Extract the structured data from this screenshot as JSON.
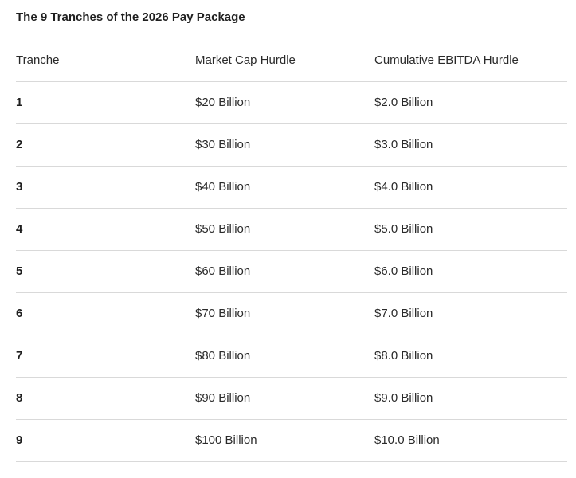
{
  "title": "The 9 Tranches of the 2026 Pay Package",
  "table": {
    "headers": [
      "Tranche",
      "Market Cap Hurdle",
      "Cumulative EBITDA Hurdle"
    ],
    "rows": [
      [
        "1",
        "$20 Billion",
        "$2.0 Billion"
      ],
      [
        "2",
        "$30 Billion",
        "$3.0 Billion"
      ],
      [
        "3",
        "$40 Billion",
        "$4.0 Billion"
      ],
      [
        "4",
        "$50 Billion",
        "$5.0 Billion"
      ],
      [
        "5",
        "$60 Billion",
        "$6.0 Billion"
      ],
      [
        "6",
        "$70 Billion",
        "$7.0 Billion"
      ],
      [
        "7",
        "$80 Billion",
        "$8.0 Billion"
      ],
      [
        "8",
        "$90 Billion",
        "$9.0 Billion"
      ],
      [
        "9",
        "$100 Billion",
        "$10.0 Billion"
      ]
    ]
  }
}
